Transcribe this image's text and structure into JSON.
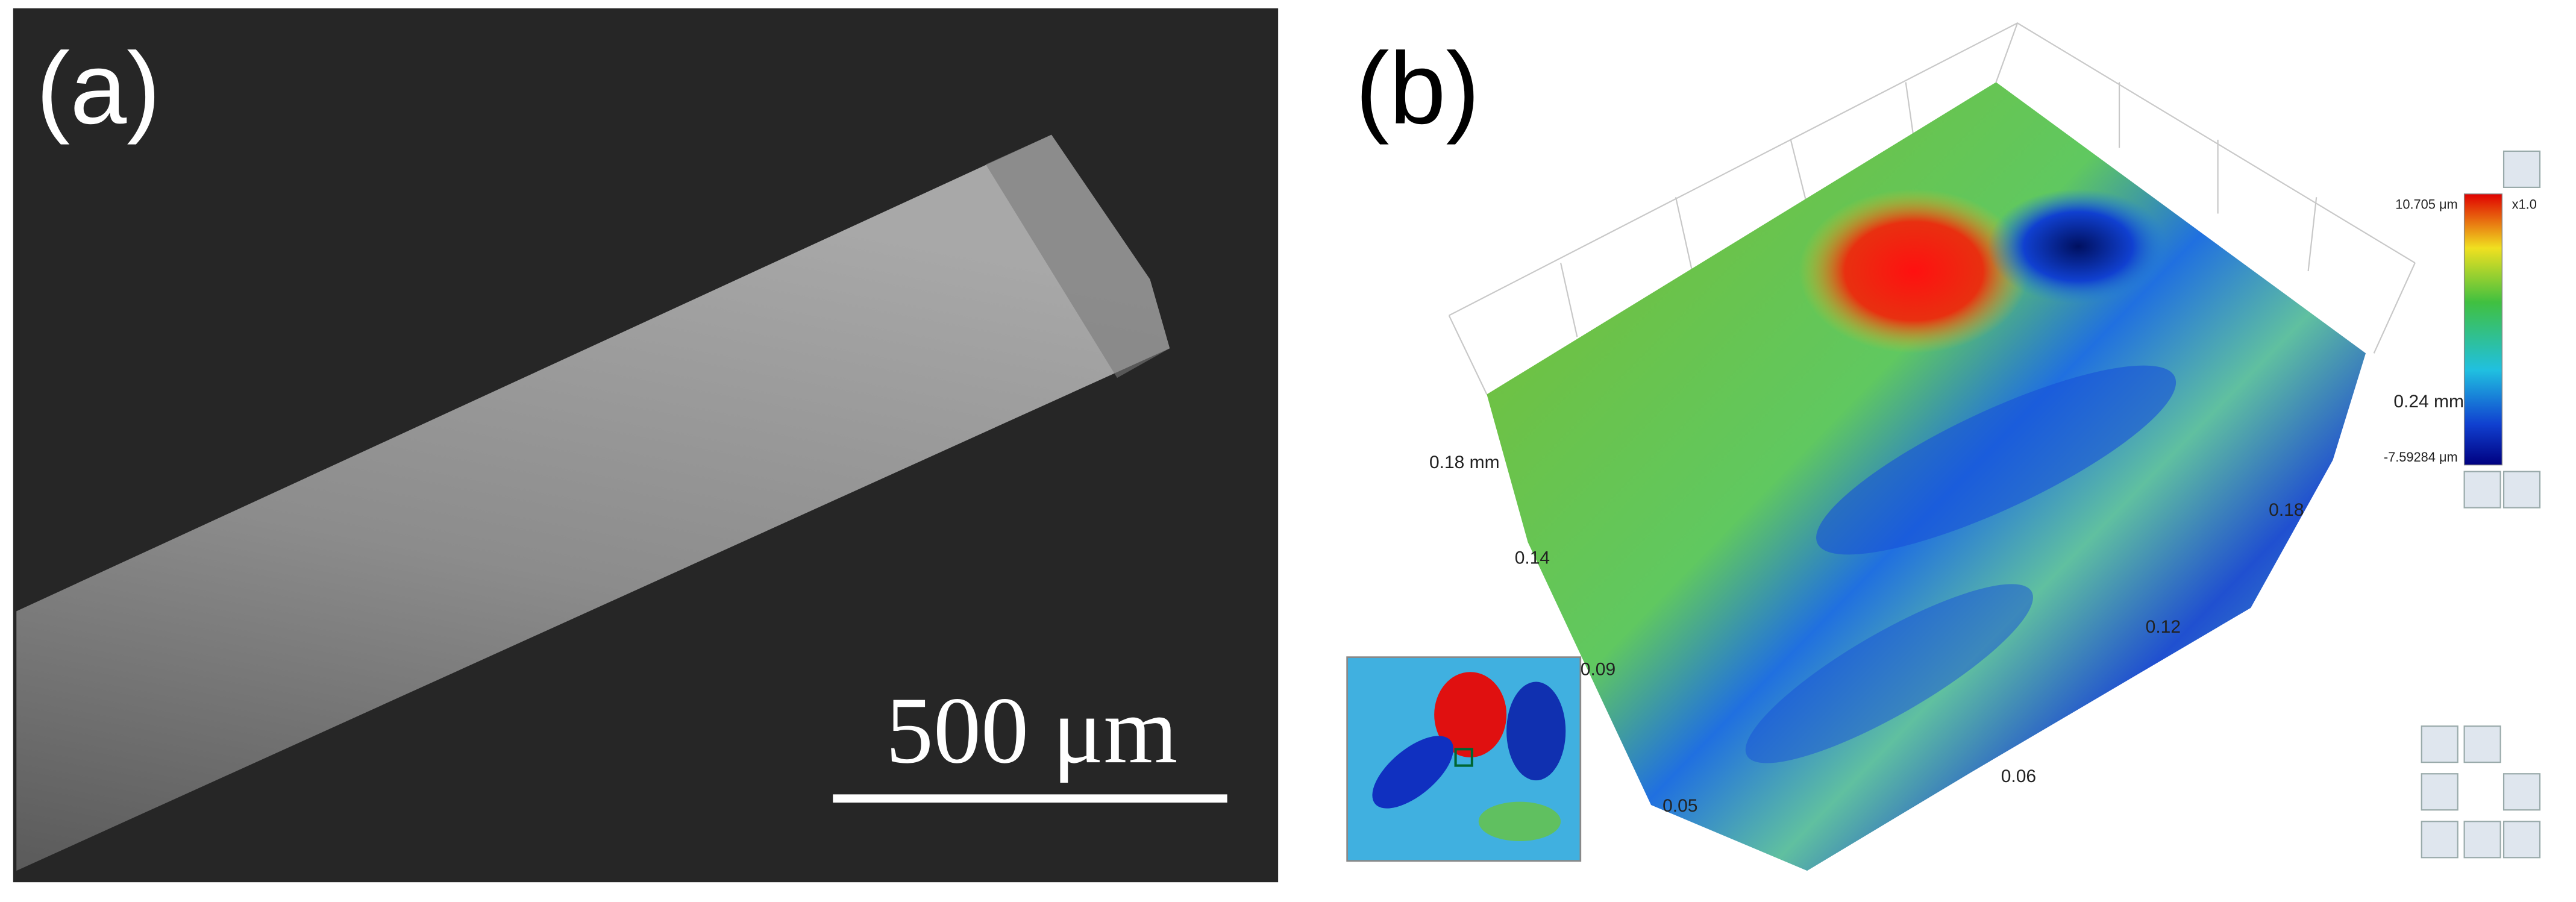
{
  "panel_a": {
    "label": "(a)",
    "scale_bar": "500 μm"
  },
  "panel_b": {
    "label": "(b)",
    "axis_left": "0.18 mm",
    "axis_right": "0.24 mm",
    "left_ticks": [
      "0.14",
      "0.09",
      "0.05"
    ],
    "right_ticks": [
      "0.18",
      "0.12",
      "0.06"
    ],
    "colorbar": {
      "max": "10.705 μm",
      "min": "-7.59284 μm",
      "zoom": "x1.0"
    }
  }
}
